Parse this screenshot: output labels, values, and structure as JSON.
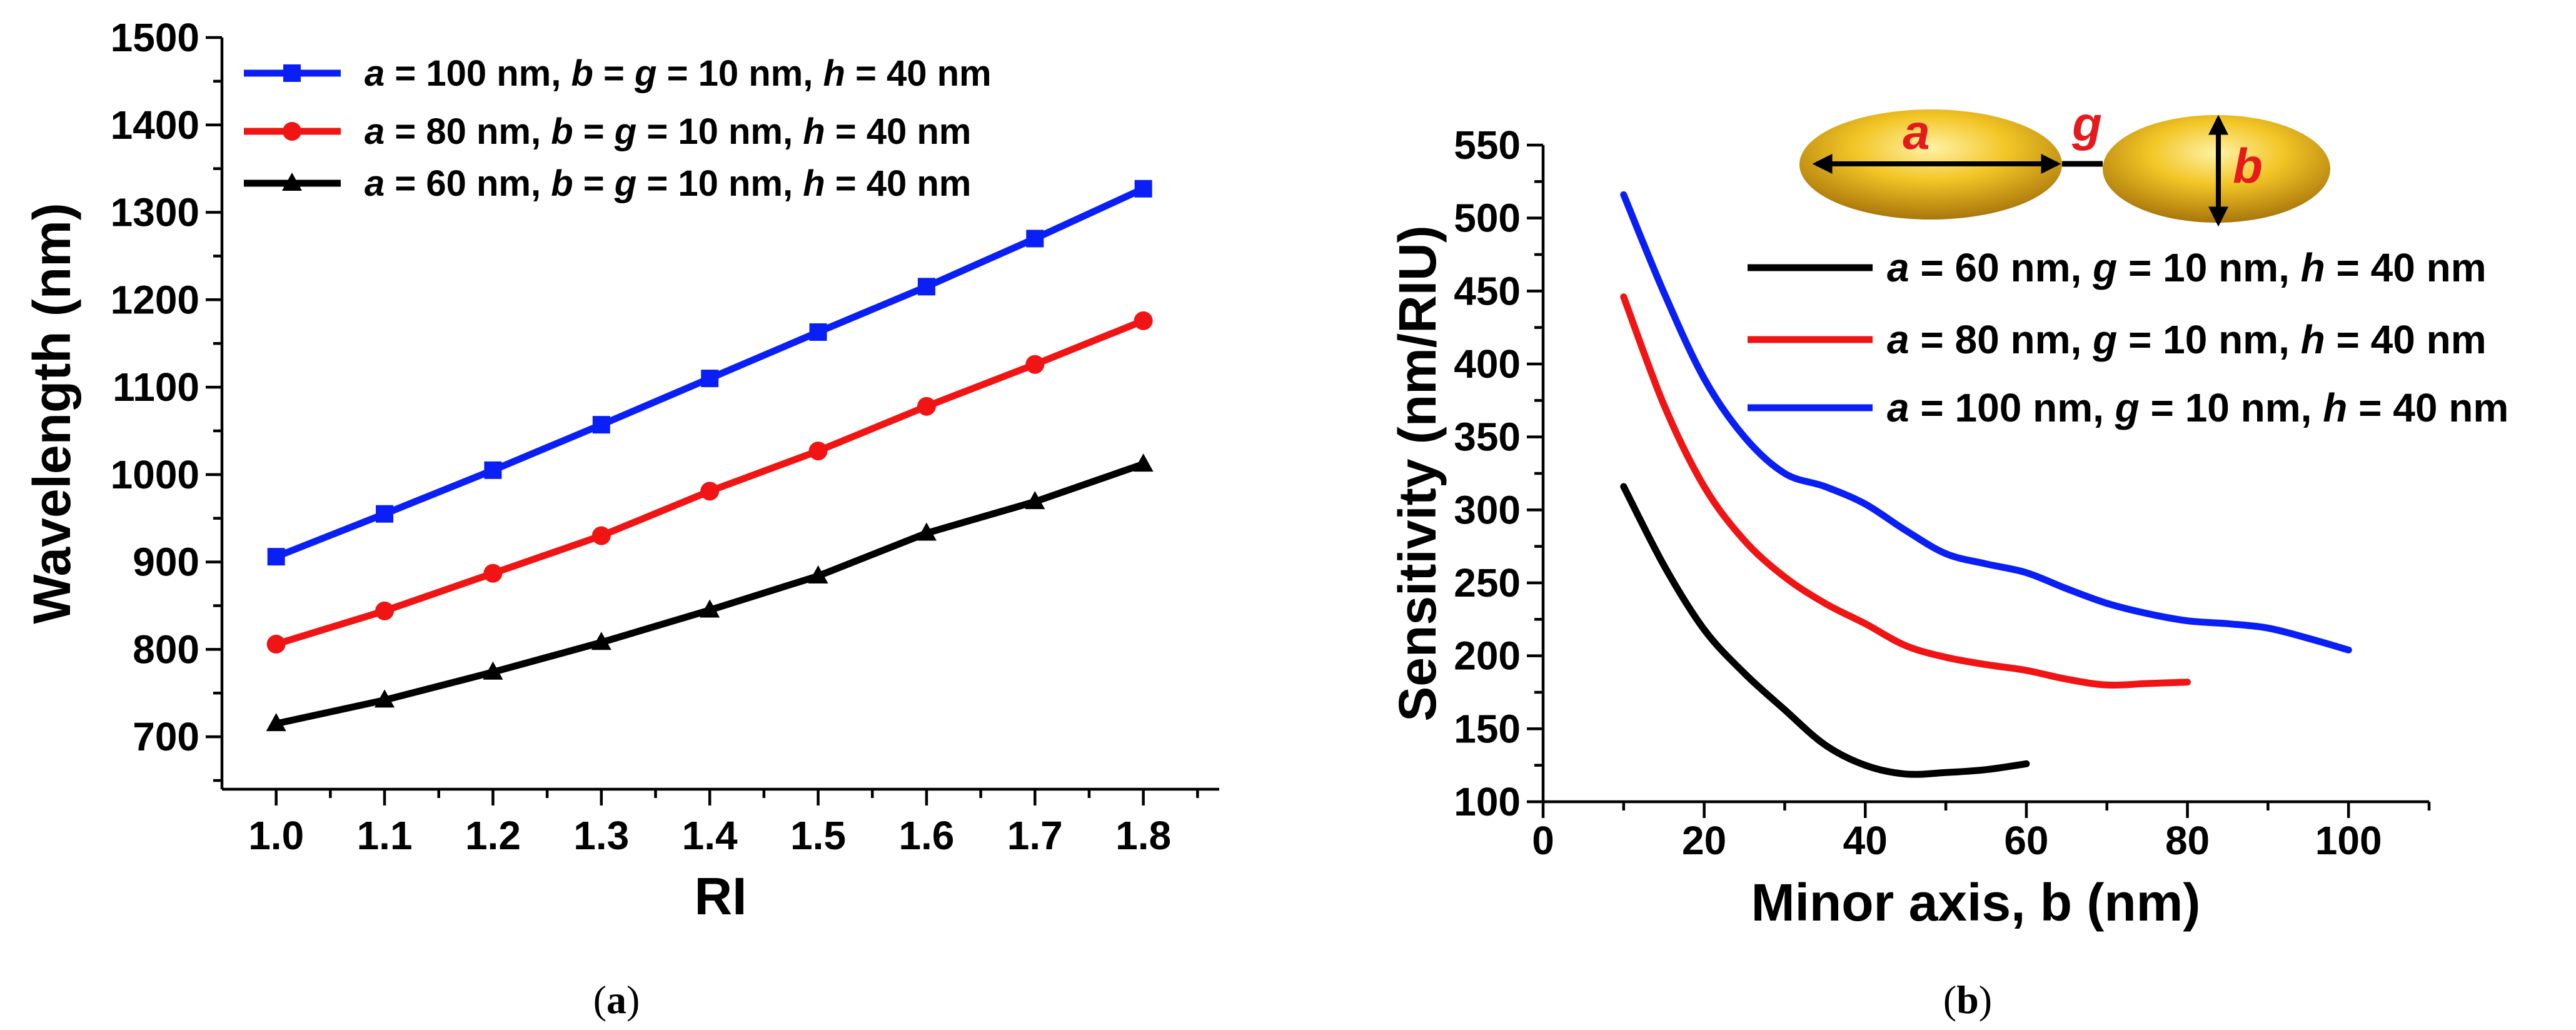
{
  "chart_data": [
    {
      "type": "line",
      "panel": "a",
      "caption": "(a)",
      "xlabel": "RI",
      "ylabel": "Wavelength (nm)",
      "xlim": [
        0.95,
        1.87
      ],
      "ylim": [
        640,
        1500
      ],
      "xticks": [
        "1.0",
        "1.1",
        "1.2",
        "1.3",
        "1.4",
        "1.5",
        "1.6",
        "1.7",
        "1.8"
      ],
      "yticks": [
        "700",
        "800",
        "900",
        "1000",
        "1100",
        "1200",
        "1300",
        "1400",
        "1500"
      ],
      "x": [
        1.0,
        1.1,
        1.2,
        1.3,
        1.4,
        1.5,
        1.6,
        1.7,
        1.8
      ],
      "legend_position": "top-left",
      "series": [
        {
          "name_parts": [
            "a",
            " = 100 nm, ",
            "b",
            " = ",
            "g",
            " = 10 nm, ",
            "h",
            " = 40 nm"
          ],
          "color": "#0a1ff5",
          "marker": "square",
          "values": [
            906,
            955,
            1005,
            1057,
            1110,
            1163,
            1215,
            1270,
            1327
          ]
        },
        {
          "name_parts": [
            "a",
            " = 80 nm, ",
            "b",
            " = ",
            "g",
            " = 10 nm, ",
            "h",
            " = 40 nm"
          ],
          "color": "#f01414",
          "marker": "circle",
          "values": [
            806,
            844,
            887,
            930,
            981,
            1027,
            1078,
            1126,
            1176
          ]
        },
        {
          "name_parts": [
            "a",
            " = 60 nm, ",
            "b",
            " = ",
            "g",
            " = 10 nm, ",
            "h",
            " = 40 nm"
          ],
          "color": "#000000",
          "marker": "triangle",
          "values": [
            715,
            742,
            774,
            808,
            845,
            884,
            933,
            969,
            1012
          ]
        }
      ]
    },
    {
      "type": "line",
      "panel": "b",
      "caption": "(b)",
      "xlabel_parts": [
        "Minor axis, ",
        "b",
        " (nm)"
      ],
      "ylabel": "Sensitivity (nm/RIU)",
      "xlim": [
        0,
        110
      ],
      "ylim": [
        100,
        550
      ],
      "xticks": [
        "0",
        "20",
        "40",
        "60",
        "80",
        "100"
      ],
      "yticks": [
        "100",
        "150",
        "200",
        "250",
        "300",
        "350",
        "400",
        "450",
        "500",
        "550"
      ],
      "legend_position": "top-right",
      "diagram_labels": {
        "a": "a",
        "b": "b",
        "g": "g"
      },
      "series": [
        {
          "name_parts": [
            "a",
            " = 60 nm, ",
            "g",
            " = 10 nm, ",
            "h",
            " = 40 nm"
          ],
          "color": "#000000",
          "x": [
            10,
            15,
            20,
            25,
            30,
            35,
            40,
            45,
            50,
            55,
            60
          ],
          "values": [
            316,
            262,
            218,
            188,
            163,
            139,
            125,
            119,
            120,
            122,
            126
          ]
        },
        {
          "name_parts": [
            "a",
            " = 80 nm, ",
            "g",
            " = 10 nm, ",
            "h",
            " = 40 nm"
          ],
          "color": "#f01414",
          "x": [
            10,
            15,
            20,
            25,
            30,
            35,
            40,
            45,
            50,
            55,
            60,
            65,
            70,
            75,
            80
          ],
          "values": [
            446,
            372,
            316,
            279,
            254,
            236,
            222,
            207,
            199,
            194,
            190,
            184,
            180,
            181,
            182
          ]
        },
        {
          "name_parts": [
            "a",
            " = 100 nm, ",
            "g",
            " = 10 nm, ",
            "h",
            " = 40 nm"
          ],
          "color": "#0a1ff5",
          "x": [
            10,
            15,
            20,
            25,
            30,
            35,
            40,
            45,
            50,
            55,
            60,
            65,
            70,
            75,
            80,
            85,
            90,
            95,
            100
          ],
          "values": [
            516,
            449,
            390,
            350,
            325,
            316,
            304,
            286,
            270,
            263,
            257,
            246,
            236,
            229,
            224,
            222,
            219,
            212,
            204
          ]
        }
      ]
    }
  ]
}
